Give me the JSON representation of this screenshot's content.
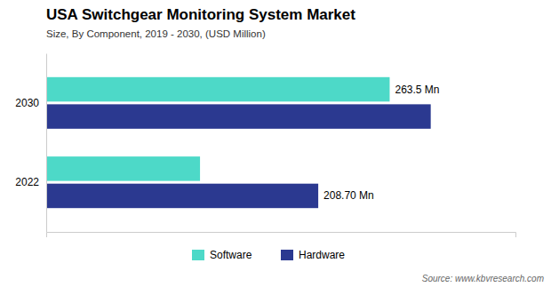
{
  "chart_data": {
    "type": "bar",
    "orientation": "horizontal",
    "title": "USA Switchgear Monitoring System Market",
    "subtitle": "Size, By Component,  2019 - 2030,  (USD Million)",
    "source": "Source: www.kbvresearch.com",
    "categories": [
      "2030",
      "2022"
    ],
    "series": [
      {
        "name": "Software",
        "color": "#4DD9C8",
        "values": [
          263.5,
          118.0
        ]
      },
      {
        "name": "Hardware",
        "color": "#2B3990",
        "values": [
          295.0,
          208.7
        ]
      }
    ],
    "annotations": [
      {
        "text": "263.5 Mn",
        "x": 263.5,
        "y": "2030",
        "series": "Software"
      },
      {
        "text": "208.70 Mn",
        "x": 208.7,
        "y": "2022",
        "series": "Hardware"
      }
    ],
    "xlim": [
      0,
      360
    ],
    "tick_labels": "y",
    "grid": false,
    "legend": "bottom"
  }
}
